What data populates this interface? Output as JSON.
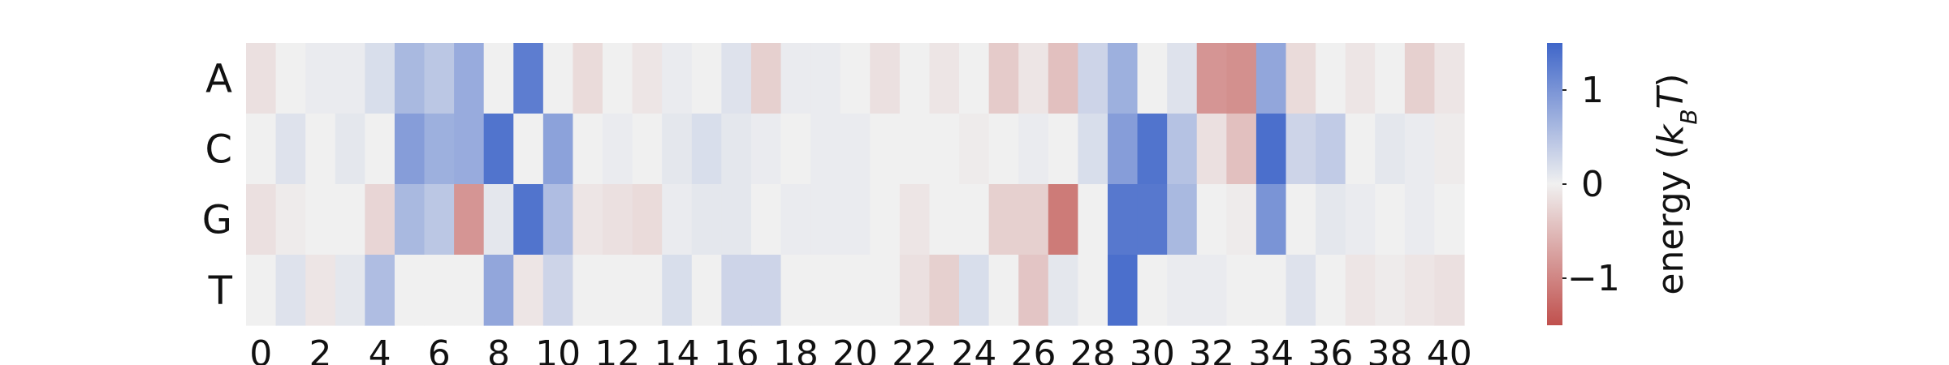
{
  "chart_data": {
    "type": "heatmap",
    "rows": [
      "A",
      "C",
      "G",
      "T"
    ],
    "columns": [
      0,
      1,
      2,
      3,
      4,
      5,
      6,
      7,
      8,
      9,
      10,
      11,
      12,
      13,
      14,
      15,
      16,
      17,
      18,
      19,
      20,
      21,
      22,
      23,
      24,
      25,
      26,
      27,
      28,
      29,
      30,
      31,
      32,
      33,
      34,
      35,
      36,
      37,
      38,
      39,
      40
    ],
    "x_tick_labels": [
      "0",
      "2",
      "4",
      "6",
      "8",
      "10",
      "12",
      "14",
      "16",
      "18",
      "20",
      "22",
      "24",
      "26",
      "28",
      "30",
      "32",
      "34",
      "36",
      "38",
      "40"
    ],
    "values": [
      [
        -0.15,
        0.0,
        0.05,
        0.05,
        0.2,
        0.6,
        0.45,
        0.75,
        0.0,
        1.25,
        0.0,
        -0.2,
        0.0,
        -0.1,
        0.05,
        0.0,
        0.15,
        -0.3,
        0.05,
        0.05,
        0.0,
        -0.15,
        0.0,
        -0.1,
        0.0,
        -0.35,
        -0.1,
        -0.45,
        0.3,
        0.7,
        0.0,
        0.15,
        -0.85,
        -0.9,
        0.8,
        -0.2,
        0.0,
        -0.1,
        0.0,
        -0.3,
        -0.1
      ],
      [
        0.0,
        0.15,
        0.0,
        0.1,
        0.0,
        0.9,
        0.7,
        0.75,
        1.35,
        0.0,
        0.85,
        0.0,
        0.05,
        0.0,
        0.1,
        0.2,
        0.1,
        0.05,
        0.0,
        0.05,
        0.05,
        0.0,
        0.0,
        0.0,
        -0.05,
        0.0,
        0.05,
        0.0,
        0.2,
        0.9,
        1.35,
        0.5,
        -0.15,
        -0.45,
        1.4,
        0.3,
        0.4,
        0.0,
        0.1,
        0.05,
        -0.05
      ],
      [
        -0.15,
        -0.05,
        0.0,
        0.0,
        -0.25,
        0.6,
        0.45,
        -0.85,
        0.1,
        1.35,
        0.55,
        -0.1,
        -0.15,
        -0.2,
        0.05,
        0.1,
        0.1,
        0.0,
        0.05,
        0.05,
        0.05,
        0.0,
        -0.1,
        0.0,
        0.0,
        -0.3,
        -0.3,
        -1.1,
        0.0,
        1.3,
        1.3,
        0.6,
        0.0,
        -0.05,
        1.0,
        0.0,
        0.1,
        0.05,
        0.0,
        0.05,
        0.0
      ],
      [
        0.0,
        0.15,
        -0.1,
        0.1,
        0.55,
        0.0,
        0.0,
        0.0,
        0.8,
        -0.1,
        0.3,
        0.0,
        0.0,
        0.0,
        0.2,
        0.0,
        0.3,
        0.3,
        0.0,
        0.0,
        0.0,
        0.0,
        -0.15,
        -0.3,
        0.2,
        0.0,
        -0.4,
        0.1,
        0.0,
        1.4,
        0.0,
        0.05,
        0.05,
        0.0,
        0.0,
        0.15,
        0.0,
        -0.1,
        -0.05,
        -0.1,
        -0.15
      ]
    ],
    "vmin": -1.5,
    "vmax": 1.5,
    "colormap": {
      "low": "#c0504d",
      "mid": "#f0f0f0",
      "high": "#3f66c9"
    },
    "colorbar": {
      "label_main": "energy (",
      "label_k": "k",
      "label_sub": "B",
      "label_t": "T",
      "label_end": ")",
      "ticks": [
        {
          "value": 1,
          "label": "1"
        },
        {
          "value": 0,
          "label": "0"
        },
        {
          "value": -1,
          "label": "−1"
        }
      ]
    }
  }
}
